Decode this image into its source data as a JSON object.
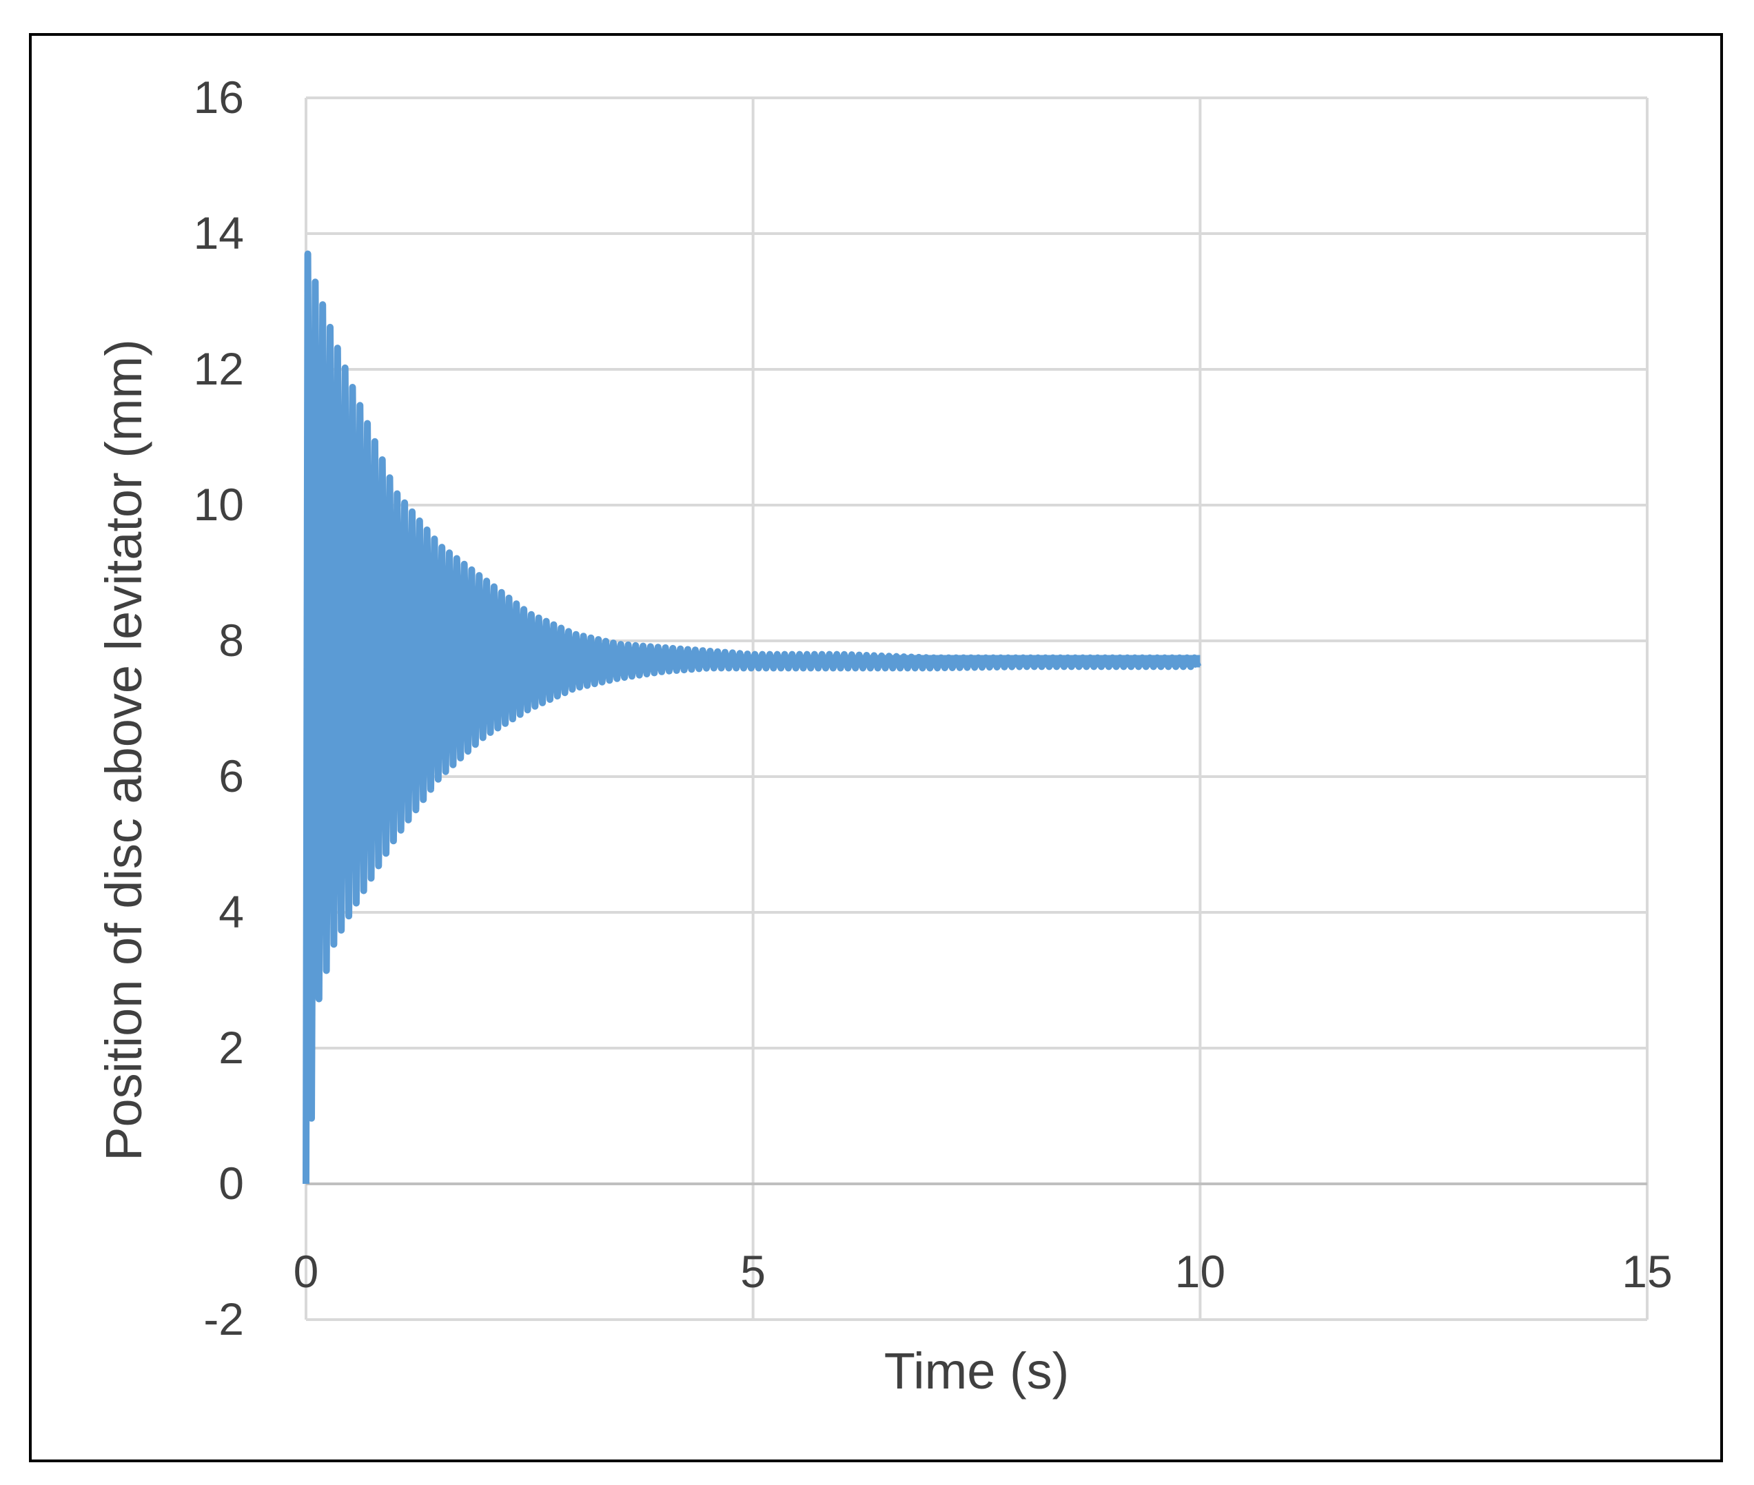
{
  "chart_data": {
    "type": "line",
    "title": "",
    "xlabel": "Time (s)",
    "ylabel": "Position of disc above levitator (mm)",
    "xlim": [
      0,
      15
    ],
    "ylim": [
      -2,
      16
    ],
    "x_ticks": [
      "0",
      "5",
      "10",
      "15"
    ],
    "y_ticks": [
      "-2",
      "0",
      "2",
      "4",
      "6",
      "8",
      "10",
      "12",
      "14",
      "16"
    ],
    "grid": true,
    "legend": "none",
    "series_color": "#5B9BD5",
    "series": [
      {
        "description": "damped oscillation settling to ~7.7 mm",
        "x": [
          0.0,
          0.02,
          0.06,
          0.1,
          0.3,
          0.5,
          1.0,
          1.5,
          2.0,
          2.5,
          3.0,
          3.5,
          4.0,
          4.5,
          5.0,
          6.0,
          7.0,
          8.0,
          9.0,
          10.0
        ],
        "upper_envelope": [
          0.0,
          13.7,
          13.6,
          13.3,
          12.5,
          11.8,
          10.2,
          9.4,
          8.9,
          8.4,
          8.1,
          7.95,
          7.9,
          7.85,
          7.8,
          7.8,
          7.75,
          7.75,
          7.75,
          7.75
        ],
        "lower_envelope": [
          0.0,
          0.0,
          0.9,
          2.5,
          3.5,
          4.0,
          5.1,
          6.0,
          6.6,
          7.0,
          7.3,
          7.45,
          7.55,
          7.6,
          7.6,
          7.6,
          7.6,
          7.62,
          7.62,
          7.62
        ],
        "steady_state": 7.7,
        "oscillation_frequency_hz": 12
      }
    ]
  }
}
